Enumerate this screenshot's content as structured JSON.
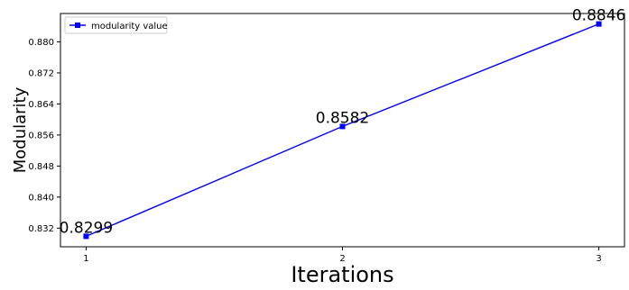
{
  "chart_data": {
    "type": "line",
    "x": [
      1,
      2,
      3
    ],
    "series": [
      {
        "name": "modularity value",
        "values": [
          0.8299,
          0.8582,
          0.8846
        ],
        "color": "#0000ff",
        "marker": "square"
      }
    ],
    "data_labels": [
      "0.8299",
      "0.8582",
      "0.8846"
    ],
    "xlabel": "Iterations",
    "ylabel": "Modularity",
    "xticks": [
      1,
      2,
      3
    ],
    "xtick_labels": [
      "1",
      "2",
      "3"
    ],
    "yticks": [
      0.832,
      0.84,
      0.848,
      0.856,
      0.864,
      0.872,
      0.88
    ],
    "ytick_labels": [
      "0.832",
      "0.840",
      "0.848",
      "0.856",
      "0.864",
      "0.872",
      "0.880"
    ],
    "xlim": [
      0.9,
      3.1
    ],
    "ylim": [
      0.8272,
      0.8873
    ],
    "grid": false,
    "legend_position": "top-left"
  }
}
